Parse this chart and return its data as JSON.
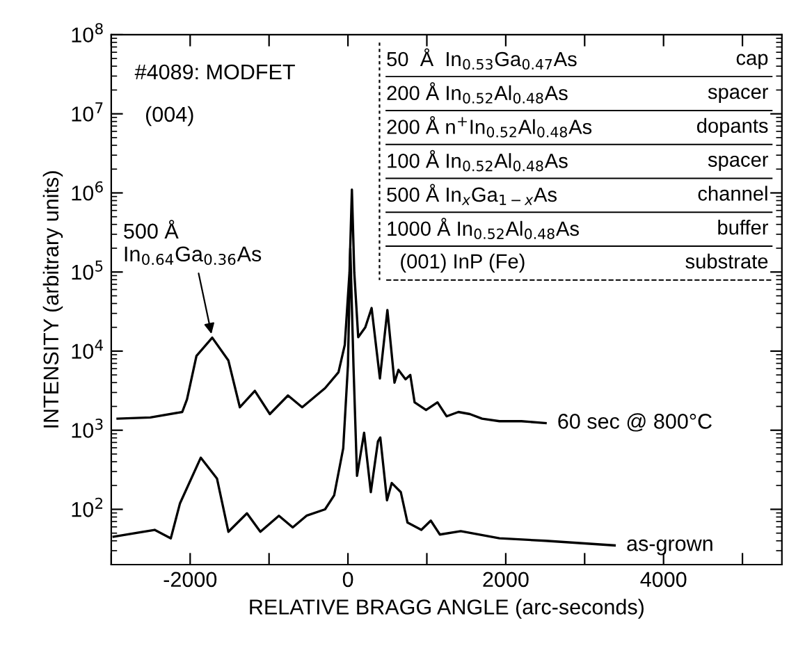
{
  "chart_data": {
    "type": "line",
    "xlabel": "RELATIVE BRAGG ANGLE (arc-seconds)",
    "ylabel": "INTENSITY (arbitrary units)",
    "log": "y",
    "xlim": [
      -3000,
      5500
    ],
    "ylim": [
      20,
      100000000
    ],
    "xticks": [
      {
        "value": -3000,
        "label": null
      },
      -2000,
      {
        "value": -1000,
        "label": null
      },
      0,
      {
        "value": 1000,
        "label": null
      },
      2000,
      {
        "value": 3000,
        "label": null
      },
      4000,
      {
        "value": 5000,
        "label": null
      }
    ],
    "yticks": [
      {
        "value": 100,
        "label": "10$^{2}$"
      },
      {
        "value": 1000,
        "label": "10$^{3}$"
      },
      {
        "value": 10000,
        "label": "10$^{4}$"
      },
      {
        "value": 100000,
        "label": "10$^{5}$"
      },
      {
        "value": 1000000,
        "label": "10$^{6}$"
      },
      {
        "value": 10000000,
        "label": "10$^{7}$"
      },
      {
        "value": 100000000,
        "label": "10$^{8}$"
      }
    ],
    "grid": false,
    "legend": false,
    "marker": "none",
    "line_style": "solid",
    "series": [
      {
        "color": "#000000",
        "x": [
          -2920,
          -2505,
          -2100,
          -2040,
          -1920,
          -1720,
          -1515,
          -1370,
          -1180,
          -990,
          -760,
          -580,
          -290,
          -120,
          -40,
          20,
          50,
          80,
          130,
          220,
          300,
          405,
          500,
          590,
          640,
          730,
          790,
          845,
          990,
          1135,
          1250,
          1400,
          1545,
          1700,
          1920,
          2200,
          2505
        ],
        "values": [
          1400,
          1450,
          1700,
          2450,
          8700,
          14800,
          7600,
          1950,
          3150,
          1600,
          2750,
          1950,
          3400,
          5400,
          12000,
          100000,
          1100000,
          100000,
          15000,
          20000,
          35000,
          4500,
          33000,
          4000,
          5800,
          4400,
          5000,
          2250,
          1800,
          2250,
          1500,
          1700,
          1600,
          1400,
          1300,
          1300,
          1230
        ]
      },
      {
        "color": "#000000",
        "x": [
          -2970,
          -2450,
          -2245,
          -2130,
          -1865,
          -1660,
          -1515,
          -1280,
          -1110,
          -875,
          -700,
          -525,
          -290,
          -175,
          -60,
          0,
          30,
          70,
          115,
          205,
          290,
          380,
          410,
          495,
          555,
          670,
          755,
          930,
          1050,
          1165,
          1430,
          1920,
          2505,
          3380
        ],
        "values": [
          45,
          55,
          43,
          118,
          450,
          245,
          52,
          89,
          52,
          83,
          59,
          83,
          100,
          150,
          590,
          6600,
          200000,
          6600,
          265,
          930,
          165,
          720,
          810,
          130,
          215,
          165,
          68,
          55,
          72,
          48,
          53,
          43,
          40,
          35
        ]
      }
    ],
    "annotations": [
      "#4089: MODFET",
      "(004)",
      {
        "text": "500 Å\nIn$_{0.64}$Ga$_{0.36}$As",
        "x": -1720,
        "y": 14800
      },
      {
        "text": "60 sec @ 800°C",
        "x": 2505,
        "y": 1230
      },
      {
        "text": "as-grown",
        "x": 3380,
        "y": 35
      },
      "50  Å  In$_{0.53}$Ga$_{0.47}$As",
      "cap",
      "200 Å In$_{0.52}$Al$_{0.48}$As",
      "spacer",
      "200 Å n$^{+}$In$_{0.52}$Al$_{0.48}$As",
      "dopants",
      "100 Å In$_{0.52}$Al$_{0.48}$As",
      "spacer",
      "500 Å In$_{x}$Ga$_{1−x}$As",
      "channel",
      "1000 Å In$_{0.52}$Al$_{0.48}$As",
      "buffer",
      "(001) InP (Fe)",
      "substrate"
    ]
  }
}
